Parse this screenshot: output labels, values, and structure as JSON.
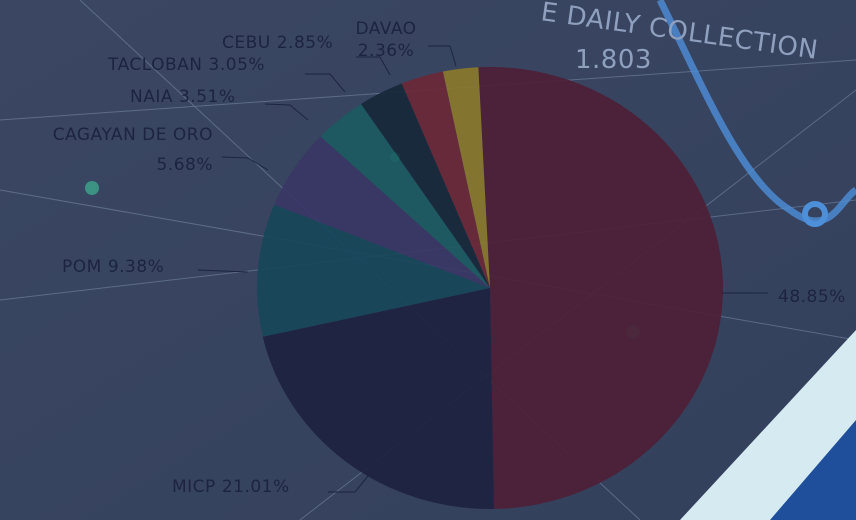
{
  "background": {
    "heading": "E DAILY COLLECTION",
    "figure": "1.803"
  },
  "chart_data": {
    "type": "pie",
    "categories": [
      null,
      "MICP",
      "POM",
      "CAGAYAN DE ORO",
      "NAIA",
      "TACLOBAN",
      "CEBU",
      "DAVAO"
    ],
    "values": [
      48.85,
      21.01,
      9.38,
      5.68,
      3.51,
      3.05,
      2.85,
      2.36
    ],
    "value_labels": [
      "48.85%",
      "21.01%",
      "9.38%",
      "5.68%",
      "3.51%",
      "3.05%",
      "2.85%",
      "2.36%"
    ],
    "colors": [
      "#4d2036",
      "#1c2240",
      "#18465a",
      "#3a3766",
      "#1c5a62",
      "#17283a",
      "#6a2838",
      "#8a7a2c"
    ]
  }
}
